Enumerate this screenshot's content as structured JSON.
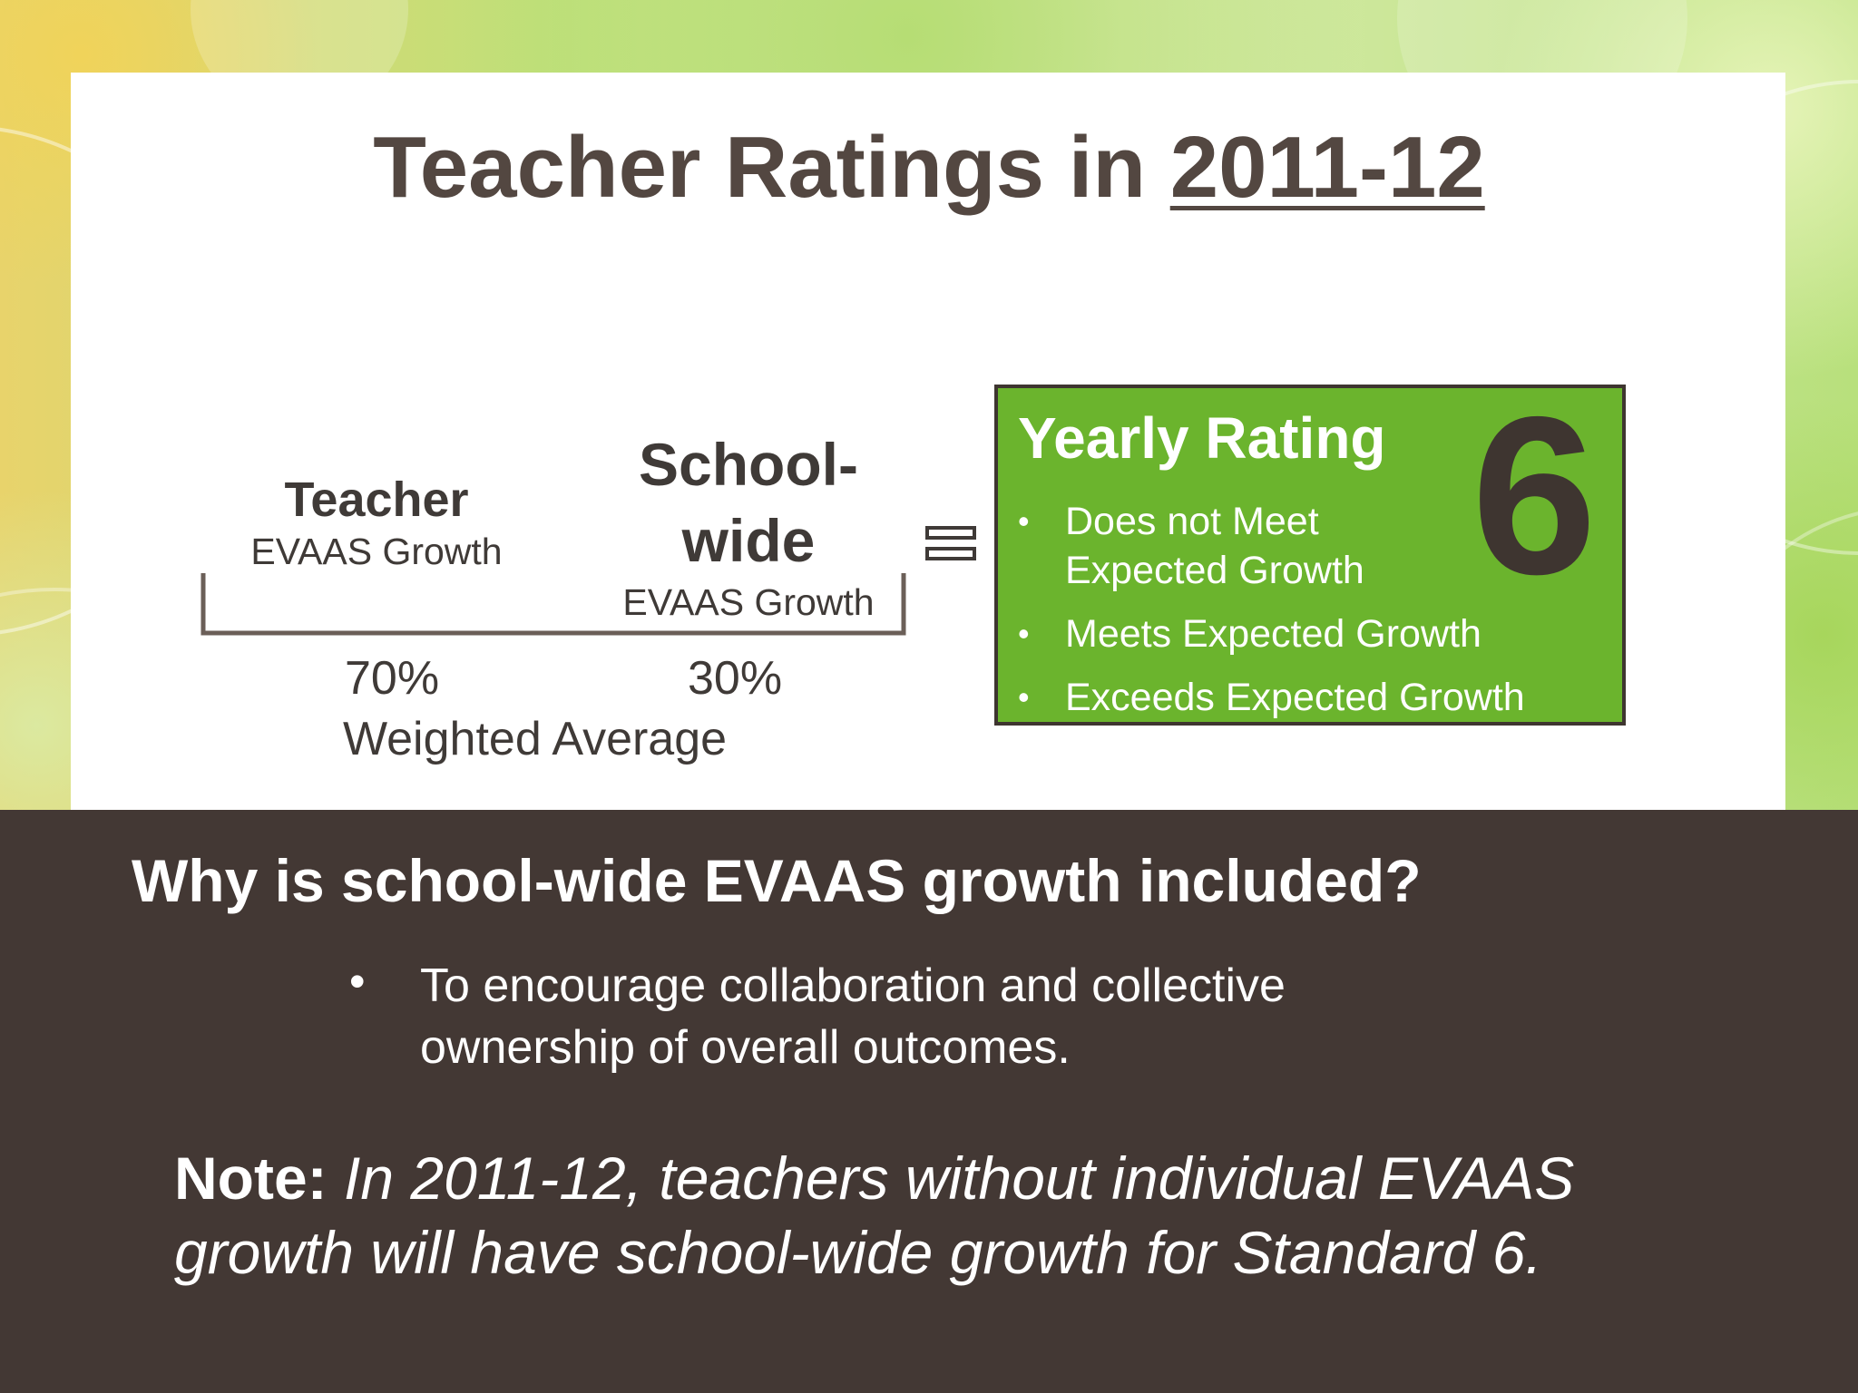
{
  "slide": {
    "title_prefix": "Teacher Ratings in ",
    "title_year": "2011-12"
  },
  "formula": {
    "teacher_head": "Teacher",
    "teacher_sub": "EVAAS Growth",
    "school_head_line1": "School-",
    "school_head_line2": "wide",
    "school_sub": "EVAAS Growth",
    "teacher_pct": "70%",
    "school_pct": "30%",
    "weighted_label": "Weighted Average",
    "equals_icon": "equals-icon"
  },
  "rating": {
    "title": "Yearly Rating",
    "number": "6",
    "items": [
      {
        "line1": "Does not Meet",
        "line2": "Expected Growth"
      },
      {
        "line1": "Meets Expected Growth",
        "line2": ""
      },
      {
        "line1": "Exceeds Expected Growth",
        "line2": ""
      }
    ],
    "bullet": "•"
  },
  "explanation": {
    "question": "Why is school-wide EVAAS growth included?",
    "bullet": "•",
    "answer_line1": "To encourage collaboration and collective",
    "answer_line2": "ownership of overall outcomes.",
    "note_label": "Note:",
    "note_line1": " In 2011-12, teachers without individual EVAAS",
    "note_line2": "growth will have school-wide growth for Standard 6."
  },
  "colors": {
    "title_brown": "#534741",
    "rating_green": "#6bb42d",
    "dark_panel": "#433834"
  }
}
